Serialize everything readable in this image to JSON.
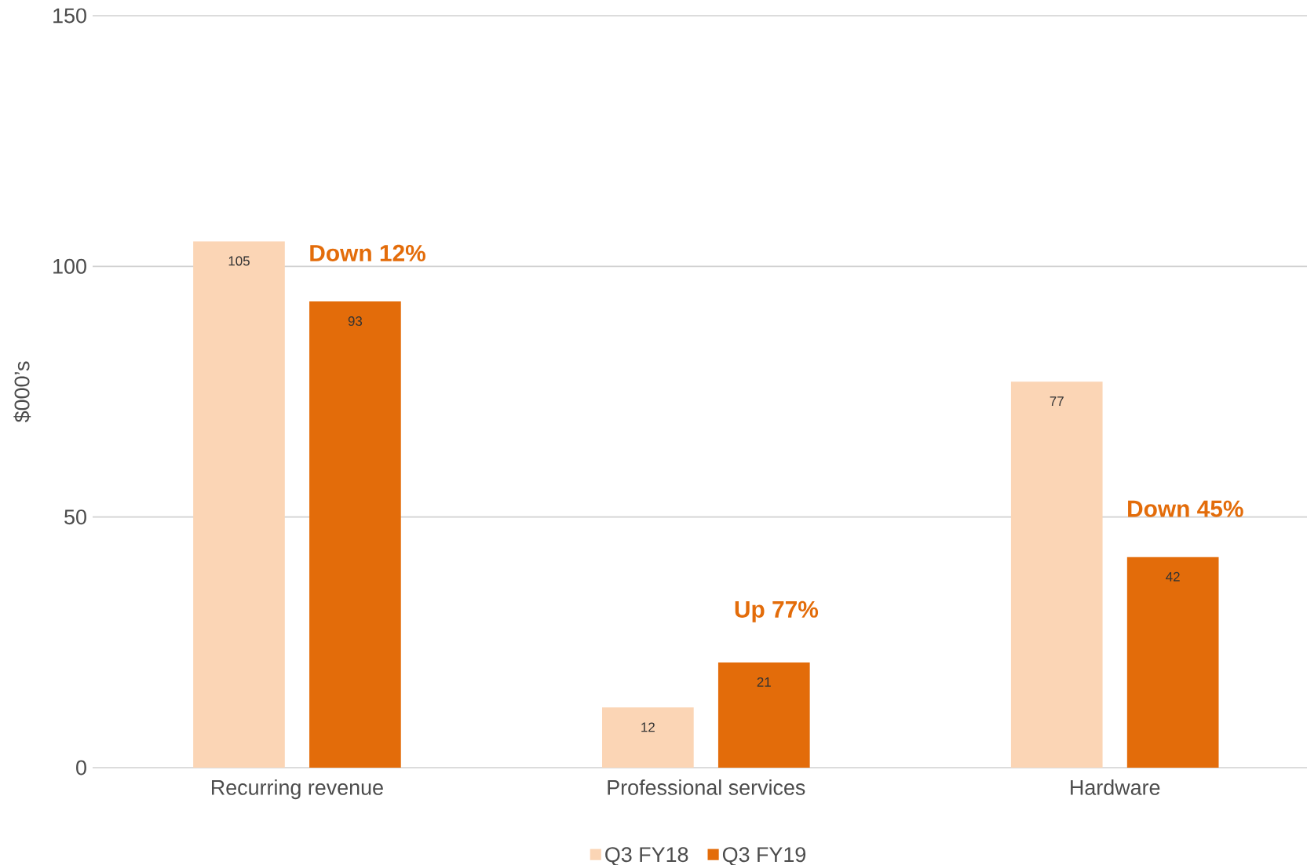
{
  "chart_data": {
    "type": "bar",
    "categories": [
      "Recurring revenue",
      "Professional services",
      "Hardware"
    ],
    "series": [
      {
        "name": "Q3 FY18",
        "color": "#fbd5b5",
        "values": [
          105,
          12,
          77
        ]
      },
      {
        "name": "Q3 FY19",
        "color": "#e36c0a",
        "values": [
          93,
          21,
          42
        ]
      }
    ],
    "ylabel": "$000’s",
    "ylim": [
      0,
      150
    ],
    "yticks": [
      0,
      50,
      100,
      150
    ],
    "grid": "y",
    "legend": "bottom",
    "data_labels": true,
    "annotations": [
      "Down 12%",
      "Up 77%",
      "Down 45%"
    ]
  }
}
